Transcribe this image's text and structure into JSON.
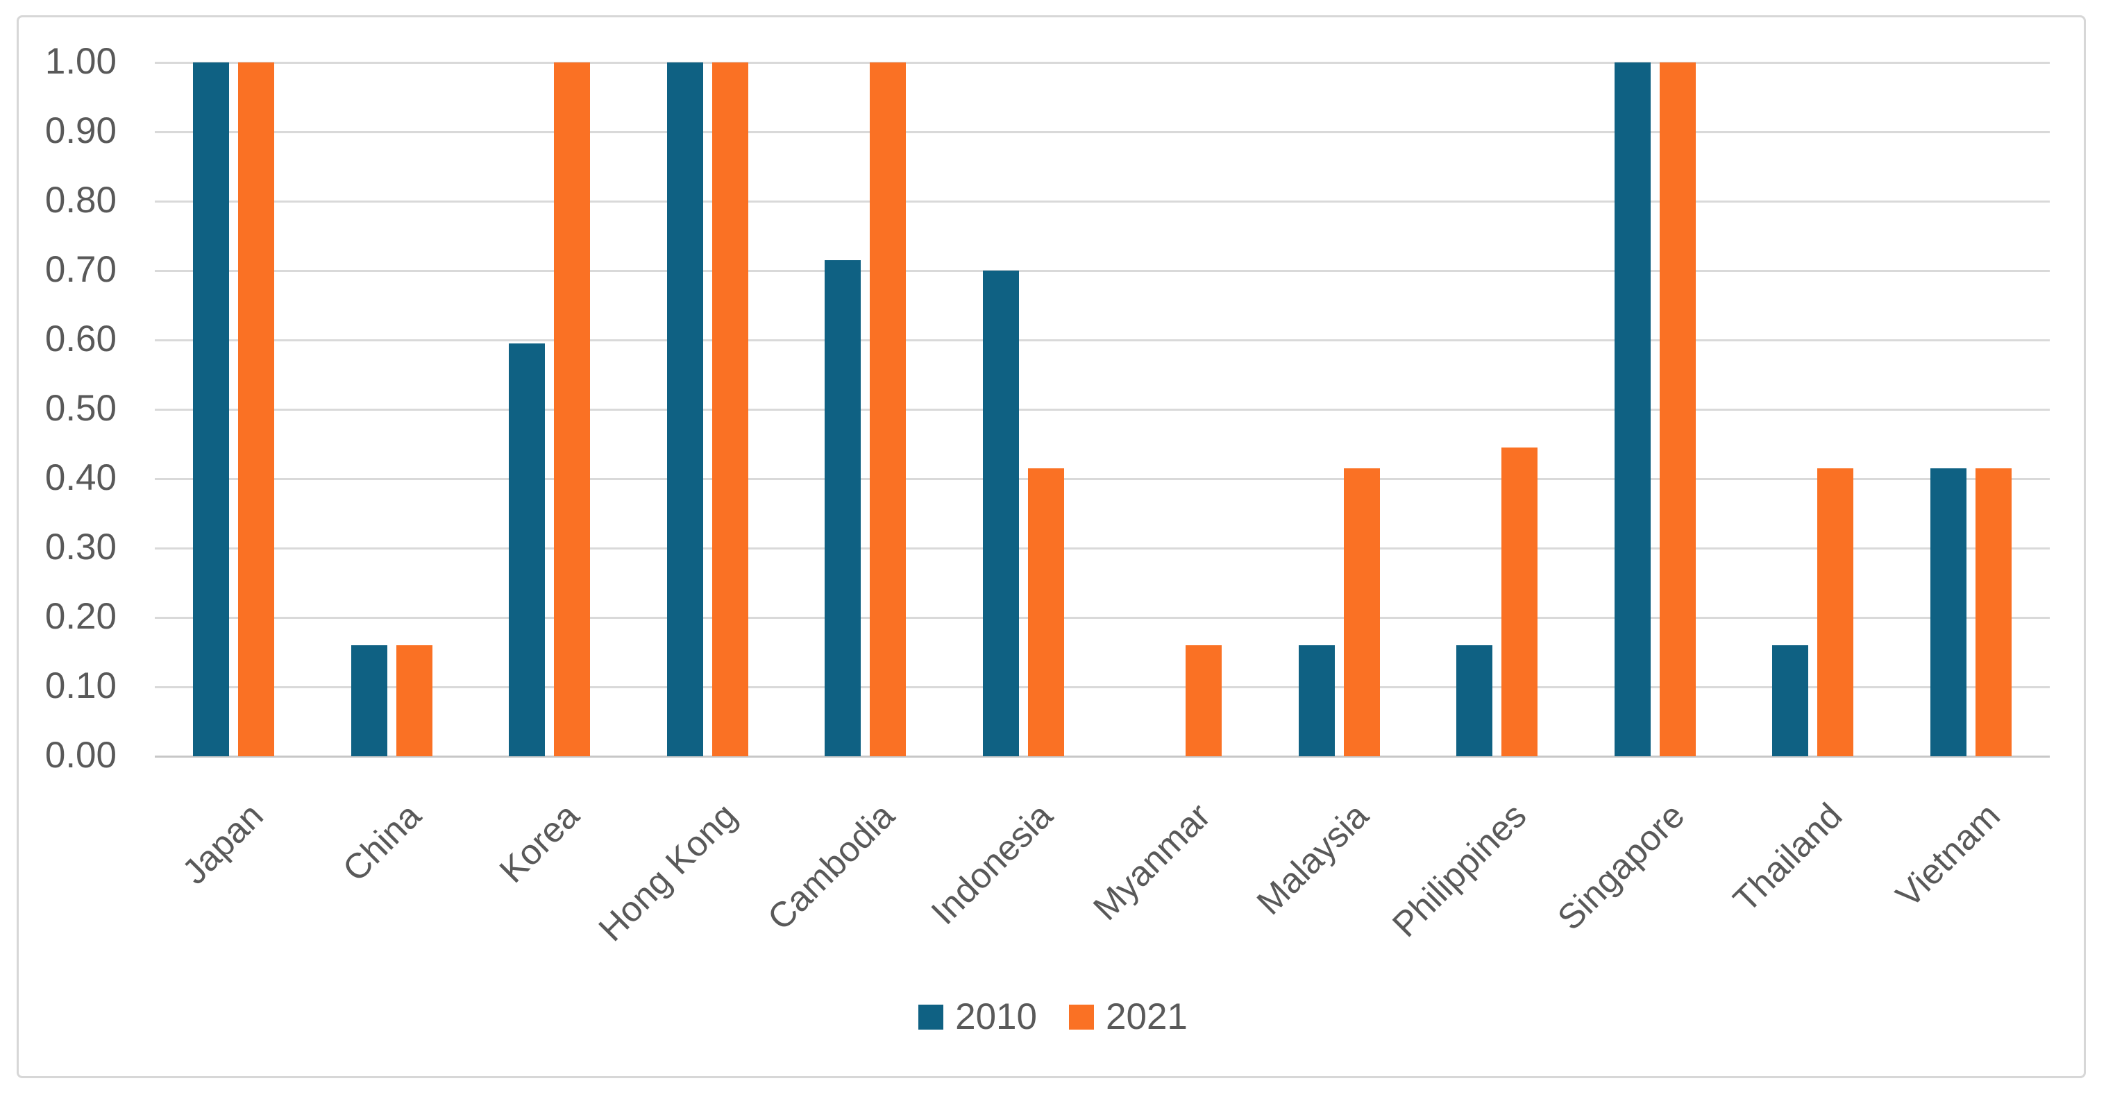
{
  "figure": {
    "background_color": "#ffffff",
    "border_color": "#d7d7d7"
  },
  "chart_data": {
    "type": "bar",
    "title": "",
    "categories": [
      "Japan",
      "China",
      "Korea",
      "Hong Kong",
      "Cambodia",
      "Indonesia",
      "Myanmar",
      "Malaysia",
      "Philippines",
      "Singapore",
      "Thailand",
      "Vietnam"
    ],
    "series": [
      {
        "name": "2010",
        "color": "#0f6183",
        "values": [
          1.0,
          0.16,
          0.595,
          1.0,
          0.715,
          0.7,
          0.0,
          0.16,
          0.16,
          1.0,
          0.16,
          0.415
        ]
      },
      {
        "name": "2021",
        "color": "#fa7124",
        "values": [
          1.0,
          0.16,
          1.0,
          1.0,
          1.0,
          0.415,
          0.16,
          0.415,
          0.445,
          1.0,
          0.415,
          0.415
        ]
      }
    ],
    "ylim": [
      0,
      1
    ],
    "ytick_step": 0.1,
    "ytick_labels": [
      "0.00",
      "0.10",
      "0.20",
      "0.30",
      "0.40",
      "0.50",
      "0.60",
      "0.70",
      "0.80",
      "0.90",
      "1.00"
    ],
    "xlabel": "",
    "ylabel": "",
    "grid": true,
    "gridline_color": "#d9d9d9",
    "axis_line_color": "#c7c7c7",
    "tick_label_color": "#595959",
    "x_label_rotation_deg": 45,
    "legend_position": "bottom"
  }
}
